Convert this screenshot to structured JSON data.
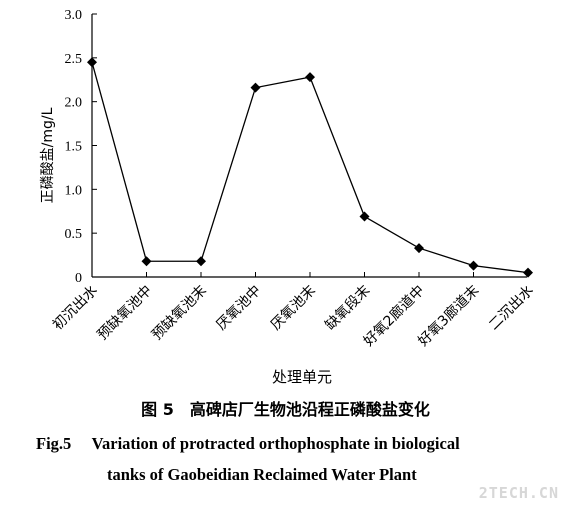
{
  "chart_data": {
    "type": "line",
    "categories": [
      "初沉出水",
      "预缺氧池中",
      "预缺氧池末",
      "厌氧池中",
      "厌氧池末",
      "缺氧段末",
      "好氧2廊道中",
      "好氧3廊道末",
      "二沉出水"
    ],
    "series": [
      {
        "values": [
          2.45,
          0.18,
          0.18,
          2.16,
          2.28,
          0.69,
          0.33,
          0.13,
          0.05
        ]
      }
    ],
    "xlabel": "处理单元",
    "ylabel": "正磷酸盐/mg/L",
    "ylim": [
      0,
      3.0
    ],
    "yticks": [
      "0",
      "0.5",
      "1.0",
      "1.5",
      "2.0",
      "2.5",
      "3.0"
    ],
    "grid": false,
    "marker": "diamond",
    "colors": {
      "line": "#000000",
      "axis": "#000000"
    }
  },
  "caption": {
    "cn": "图 5　高碑店厂生物池沿程正磷酸盐变化",
    "en_line1": "Fig.5　 Variation of protracted orthophosphate in biological",
    "en_line2": "tanks of Gaobeidian Reclaimed Water Plant"
  },
  "watermark": "2TECH.CN"
}
